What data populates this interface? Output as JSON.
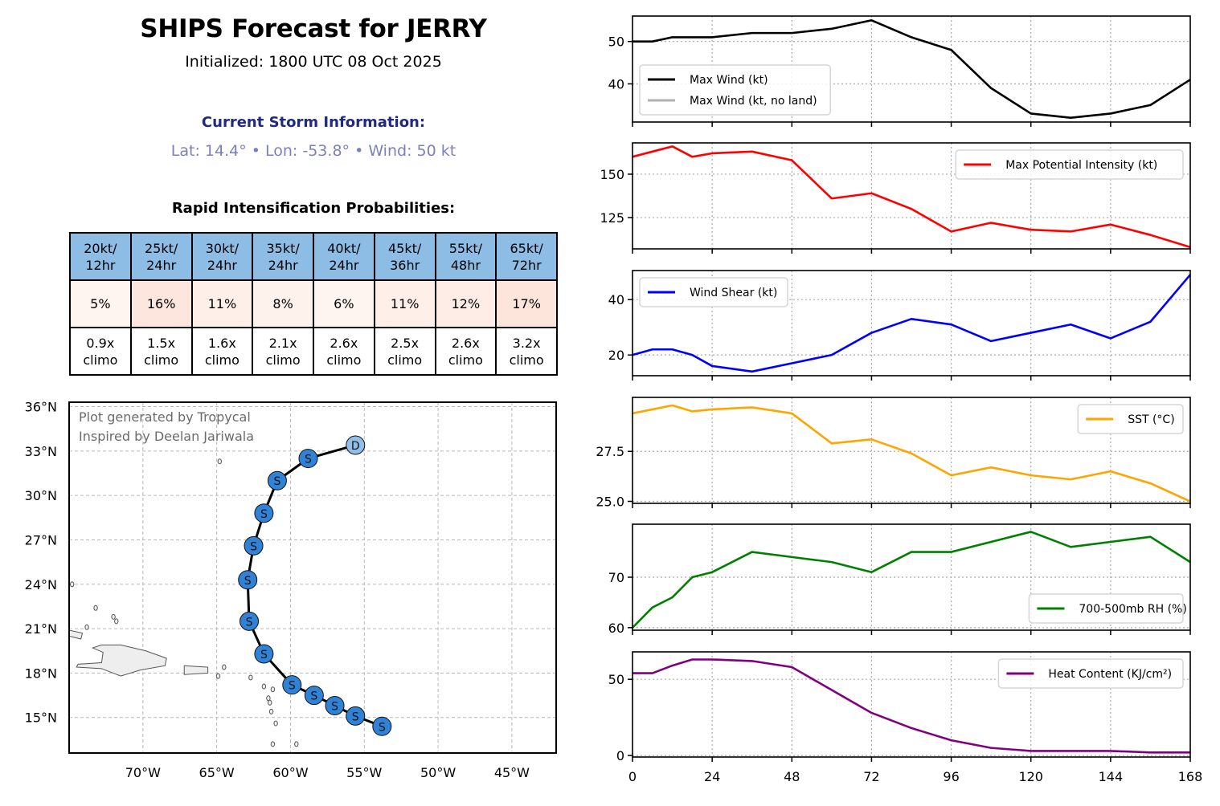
{
  "header": {
    "title": "SHIPS Forecast for JERRY",
    "initialized": "Initialized: 1800 UTC 08 Oct 2025",
    "current_heading": "Current Storm Information:",
    "current_info": "Lat: 14.4° • Lon: -53.8° • Wind: 50 kt",
    "ri_heading": "Rapid Intensification Probabilities:"
  },
  "ri_table": {
    "columns": [
      {
        "threshold": "20kt/",
        "period": "12hr",
        "prob": "5%",
        "climo_ratio": "0.9x",
        "climo_label": "climo",
        "color": "#fef4f0"
      },
      {
        "threshold": "25kt/",
        "period": "24hr",
        "prob": "16%",
        "climo_ratio": "1.5x",
        "climo_label": "climo",
        "color": "#fde6de"
      },
      {
        "threshold": "30kt/",
        "period": "24hr",
        "prob": "11%",
        "climo_ratio": "1.6x",
        "climo_label": "climo",
        "color": "#feefe9"
      },
      {
        "threshold": "35kt/",
        "period": "24hr",
        "prob": "8%",
        "climo_ratio": "2.1x",
        "climo_label": "climo",
        "color": "#fef2ed"
      },
      {
        "threshold": "40kt/",
        "period": "24hr",
        "prob": "6%",
        "climo_ratio": "2.6x",
        "climo_label": "climo",
        "color": "#fef4f0"
      },
      {
        "threshold": "45kt/",
        "period": "36hr",
        "prob": "11%",
        "climo_ratio": "2.5x",
        "climo_label": "climo",
        "color": "#feefe9"
      },
      {
        "threshold": "55kt/",
        "period": "48hr",
        "prob": "12%",
        "climo_ratio": "2.6x",
        "climo_label": "climo",
        "color": "#feede7"
      },
      {
        "threshold": "65kt/",
        "period": "72hr",
        "prob": "17%",
        "climo_ratio": "3.2x",
        "climo_label": "climo",
        "color": "#fde5dc"
      }
    ]
  },
  "chart_data": [
    {
      "type": "map",
      "title": "Forecast track",
      "annotation_lines": [
        "Plot generated by Tropycal",
        "Inspired by Deelan Jariwala"
      ],
      "xlim": [
        -75,
        -42
      ],
      "ylim": [
        12.6,
        36.3
      ],
      "x_ticks": [
        -70,
        -65,
        -60,
        -55,
        -50,
        -45
      ],
      "x_tick_labels": [
        "70°W",
        "65°W",
        "60°W",
        "55°W",
        "50°W",
        "45°W"
      ],
      "y_ticks": [
        15,
        18,
        21,
        24,
        27,
        30,
        33,
        36
      ],
      "y_tick_labels": [
        "15°N",
        "18°N",
        "21°N",
        "24°N",
        "27°N",
        "30°N",
        "33°N",
        "36°N"
      ],
      "grid": true,
      "track": [
        {
          "lon": -53.8,
          "lat": 14.4,
          "type": "S"
        },
        {
          "lon": -55.6,
          "lat": 15.1,
          "type": "S"
        },
        {
          "lon": -57.0,
          "lat": 15.8,
          "type": "S"
        },
        {
          "lon": -58.4,
          "lat": 16.5,
          "type": "S"
        },
        {
          "lon": -59.9,
          "lat": 17.2,
          "type": "S"
        },
        {
          "lon": -61.8,
          "lat": 19.3,
          "type": "S"
        },
        {
          "lon": -62.8,
          "lat": 21.5,
          "type": "S"
        },
        {
          "lon": -62.9,
          "lat": 24.3,
          "type": "S"
        },
        {
          "lon": -62.5,
          "lat": 26.6,
          "type": "S"
        },
        {
          "lon": -61.8,
          "lat": 28.8,
          "type": "S"
        },
        {
          "lon": -60.9,
          "lat": 31.0,
          "type": "S"
        },
        {
          "lon": -58.8,
          "lat": 32.5,
          "type": "S"
        },
        {
          "lon": -55.6,
          "lat": 33.4,
          "type": "D"
        }
      ],
      "marker_colors": {
        "S": "#2f82d6",
        "D": "#90c0ea"
      }
    },
    {
      "type": "line",
      "x": [
        0,
        6,
        12,
        18,
        24,
        36,
        48,
        60,
        72,
        84,
        96,
        108,
        120,
        132,
        144,
        156,
        168
      ],
      "x_ticks": [
        0,
        24,
        48,
        72,
        96,
        120,
        144,
        168
      ],
      "ylim": [
        31,
        56
      ],
      "y_ticks": [
        40,
        50
      ],
      "grid": true,
      "legend_position": "lower-left",
      "series": [
        {
          "name": "Max Wind (kt)",
          "color": "#000000",
          "values": [
            50,
            50,
            51,
            51,
            51,
            52,
            52,
            53,
            55,
            51,
            48,
            39,
            33,
            32,
            33,
            35,
            41
          ]
        },
        {
          "name": "Max Wind (kt, no land)",
          "color": "#b0b0b0",
          "values": []
        }
      ]
    },
    {
      "type": "line",
      "x": [
        0,
        6,
        12,
        18,
        24,
        36,
        48,
        60,
        72,
        84,
        96,
        108,
        120,
        132,
        144,
        156,
        168
      ],
      "x_ticks": [
        0,
        24,
        48,
        72,
        96,
        120,
        144,
        168
      ],
      "ylim": [
        107,
        168
      ],
      "y_ticks": [
        125,
        150
      ],
      "grid": true,
      "legend_position": "upper-right",
      "series": [
        {
          "name": "Max Potential Intensity (kt)",
          "color": "#ff0000",
          "values": [
            160,
            163,
            166,
            160,
            162,
            163,
            158,
            136,
            139,
            130,
            117,
            122,
            118,
            117,
            121,
            115,
            108
          ]
        }
      ]
    },
    {
      "type": "line",
      "x": [
        0,
        6,
        12,
        18,
        24,
        36,
        48,
        60,
        72,
        84,
        96,
        108,
        120,
        132,
        144,
        156,
        168
      ],
      "x_ticks": [
        0,
        24,
        48,
        72,
        96,
        120,
        144,
        168
      ],
      "ylim": [
        12.5,
        50.5
      ],
      "y_ticks": [
        20,
        40
      ],
      "grid": true,
      "legend_position": "upper-left",
      "series": [
        {
          "name": "Wind Shear (kt)",
          "color": "#0000ff",
          "values": [
            20,
            22,
            22,
            20,
            16,
            14,
            17,
            20,
            28,
            33,
            31,
            25,
            28,
            31,
            26,
            32,
            49
          ]
        }
      ]
    },
    {
      "type": "line",
      "x": [
        0,
        6,
        12,
        18,
        24,
        36,
        48,
        60,
        72,
        84,
        96,
        108,
        120,
        132,
        144,
        156,
        168
      ],
      "x_ticks": [
        0,
        24,
        48,
        72,
        96,
        120,
        144,
        168
      ],
      "ylim": [
        24.9,
        30.2
      ],
      "y_ticks": [
        25.0,
        27.5
      ],
      "y_tick_labels": [
        "25.0",
        "27.5"
      ],
      "grid": true,
      "legend_position": "upper-right",
      "series": [
        {
          "name": "SST (°C)",
          "color": "#ffa500",
          "values": [
            29.4,
            29.6,
            29.8,
            29.5,
            29.6,
            29.7,
            29.4,
            27.9,
            28.1,
            27.4,
            26.3,
            26.7,
            26.3,
            26.1,
            26.5,
            25.9,
            25.0
          ]
        }
      ]
    },
    {
      "type": "line",
      "x": [
        0,
        6,
        12,
        18,
        24,
        36,
        48,
        60,
        72,
        84,
        96,
        108,
        120,
        132,
        144,
        156,
        168
      ],
      "x_ticks": [
        0,
        24,
        48,
        72,
        96,
        120,
        144,
        168
      ],
      "ylim": [
        59.5,
        80.5
      ],
      "y_ticks": [
        60,
        70
      ],
      "grid": true,
      "legend_position": "lower-right",
      "series": [
        {
          "name": "700-500mb RH (%)",
          "color": "#008000",
          "values": [
            60,
            64,
            66,
            70,
            71,
            75,
            74,
            73,
            71,
            75,
            75,
            77,
            79,
            76,
            77,
            78,
            73
          ]
        }
      ]
    },
    {
      "type": "line",
      "x": [
        0,
        6,
        12,
        18,
        24,
        36,
        48,
        60,
        72,
        84,
        96,
        108,
        120,
        132,
        144,
        156,
        168
      ],
      "x_ticks": [
        0,
        24,
        48,
        72,
        96,
        120,
        144,
        168
      ],
      "x_tick_labels": [
        "0",
        "24",
        "48",
        "72",
        "96",
        "120",
        "144",
        "168"
      ],
      "ylim": [
        -1,
        68
      ],
      "y_ticks": [
        0,
        50
      ],
      "grid": true,
      "legend_position": "upper-right",
      "series": [
        {
          "name": "Heat Content (KJ/cm²)",
          "color": "#800080",
          "values": [
            54,
            54,
            59,
            63,
            63,
            62,
            58,
            43,
            28,
            18,
            10,
            5,
            3,
            3,
            3,
            2,
            2
          ]
        }
      ]
    }
  ]
}
